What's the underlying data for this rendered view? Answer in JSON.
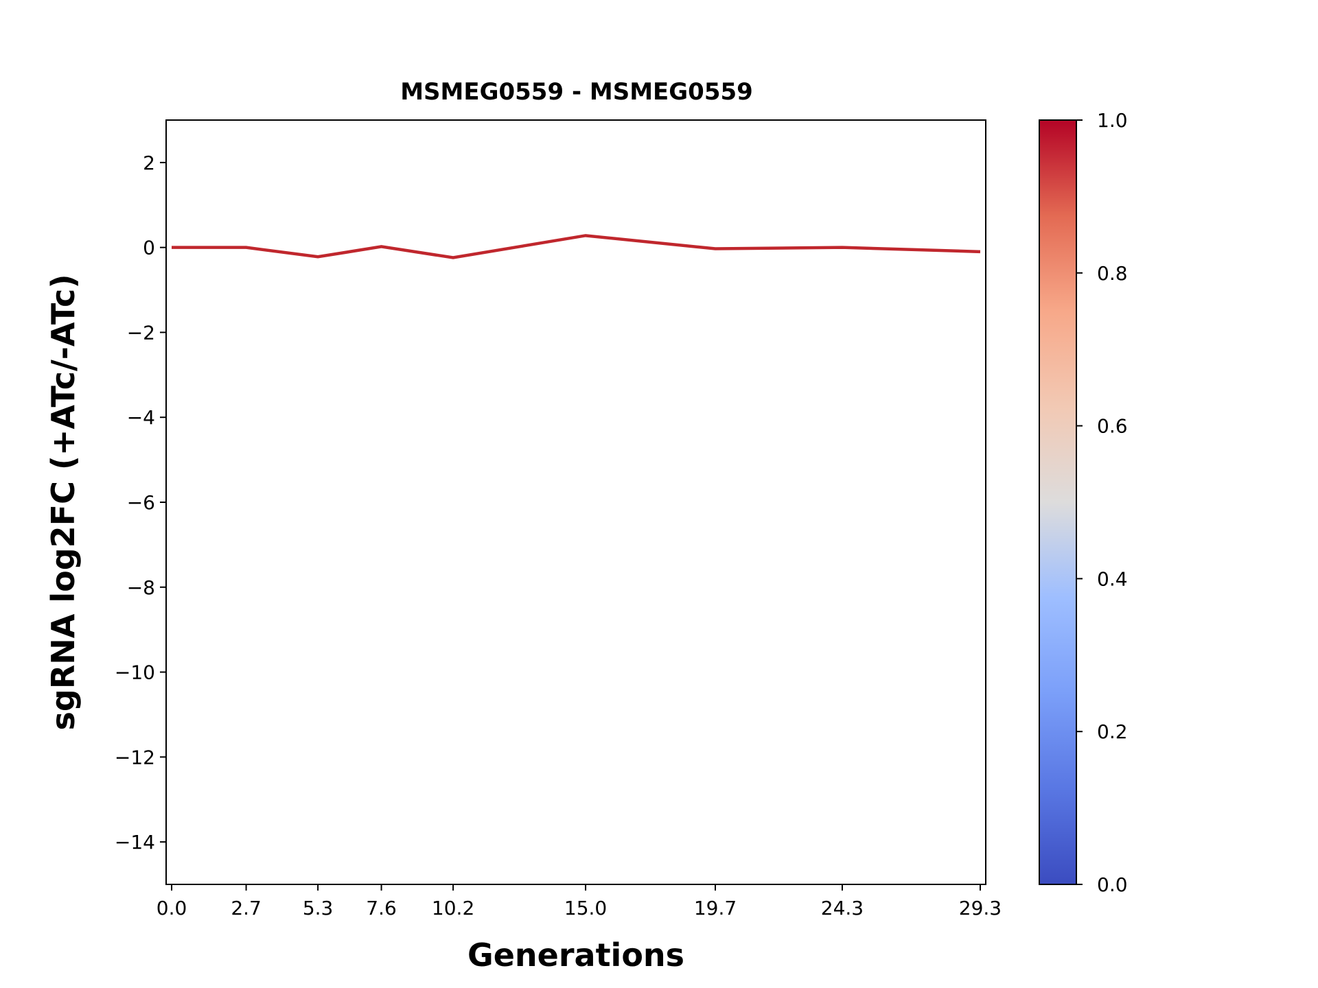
{
  "chart_data": {
    "type": "line",
    "title": "MSMEG0559 - MSMEG0559",
    "xlabel": "Generations",
    "ylabel": "sgRNA log2FC (+ATc/-ATc)",
    "x": [
      0.0,
      2.7,
      5.3,
      7.6,
      10.2,
      15.0,
      19.7,
      24.3,
      29.3
    ],
    "x_tick_labels": [
      "0.0",
      "2.7",
      "5.3",
      "7.6",
      "10.2",
      "15.0",
      "19.7",
      "24.3",
      "29.3"
    ],
    "series": [
      {
        "values": [
          0.0,
          0.0,
          -0.22,
          0.02,
          -0.24,
          0.28,
          -0.03,
          0.0,
          -0.1
        ],
        "color": "#c0272d"
      }
    ],
    "xlim": [
      -0.2,
      29.5
    ],
    "ylim": [
      -15,
      3
    ],
    "y_ticks": [
      2,
      0,
      -2,
      -4,
      -6,
      -8,
      -10,
      -12,
      -14
    ],
    "y_tick_labels": [
      "2",
      "0",
      "−2",
      "−4",
      "−6",
      "−8",
      "−10",
      "−12",
      "−14"
    ],
    "grid": false,
    "colorbar": {
      "colormap": "coolwarm",
      "range": [
        0.0,
        1.0
      ],
      "ticks": [
        0.0,
        0.2,
        0.4,
        0.6,
        0.8,
        1.0
      ],
      "tick_labels": [
        "0.0",
        "0.2",
        "0.4",
        "0.6",
        "0.8",
        "1.0"
      ]
    }
  }
}
